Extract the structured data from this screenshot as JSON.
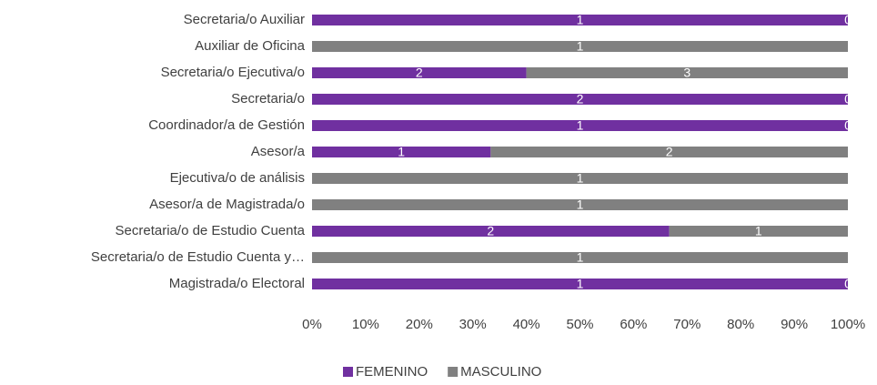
{
  "chart_data": {
    "type": "bar",
    "orientation": "horizontal",
    "stacking": "percent",
    "categories": [
      "Secretaria/o Auxiliar",
      "Auxiliar de Oficina",
      "Secretaria/o Ejecutiva/o",
      "Secretaria/o",
      "Coordinador/a de Gestión",
      "Asesor/a",
      "Ejecutiva/o de análisis",
      "Asesor/a de Magistrada/o",
      "Secretaria/o de Estudio Cuenta",
      "Secretaria/o de Estudio Cuenta y…",
      "Magistrada/o Electoral"
    ],
    "series": [
      {
        "name": "FEMENINO",
        "color": "#7030a0",
        "values": [
          1,
          0,
          2,
          2,
          1,
          1,
          0,
          0,
          2,
          0,
          1
        ]
      },
      {
        "name": "MASCULINO",
        "color": "#808080",
        "values": [
          0,
          1,
          3,
          0,
          0,
          2,
          1,
          1,
          1,
          1,
          0
        ]
      }
    ],
    "xlim": [
      0,
      100
    ],
    "xticks": [
      {
        "value": 0,
        "label": "0%"
      },
      {
        "value": 10,
        "label": "10%"
      },
      {
        "value": 20,
        "label": "20%"
      },
      {
        "value": 30,
        "label": "30%"
      },
      {
        "value": 40,
        "label": "40%"
      },
      {
        "value": 50,
        "label": "50%"
      },
      {
        "value": 60,
        "label": "60%"
      },
      {
        "value": 70,
        "label": "70%"
      },
      {
        "value": 80,
        "label": "80%"
      },
      {
        "value": 90,
        "label": "90%"
      },
      {
        "value": 100,
        "label": "100%"
      }
    ],
    "grid": false,
    "legend": "bottom"
  }
}
